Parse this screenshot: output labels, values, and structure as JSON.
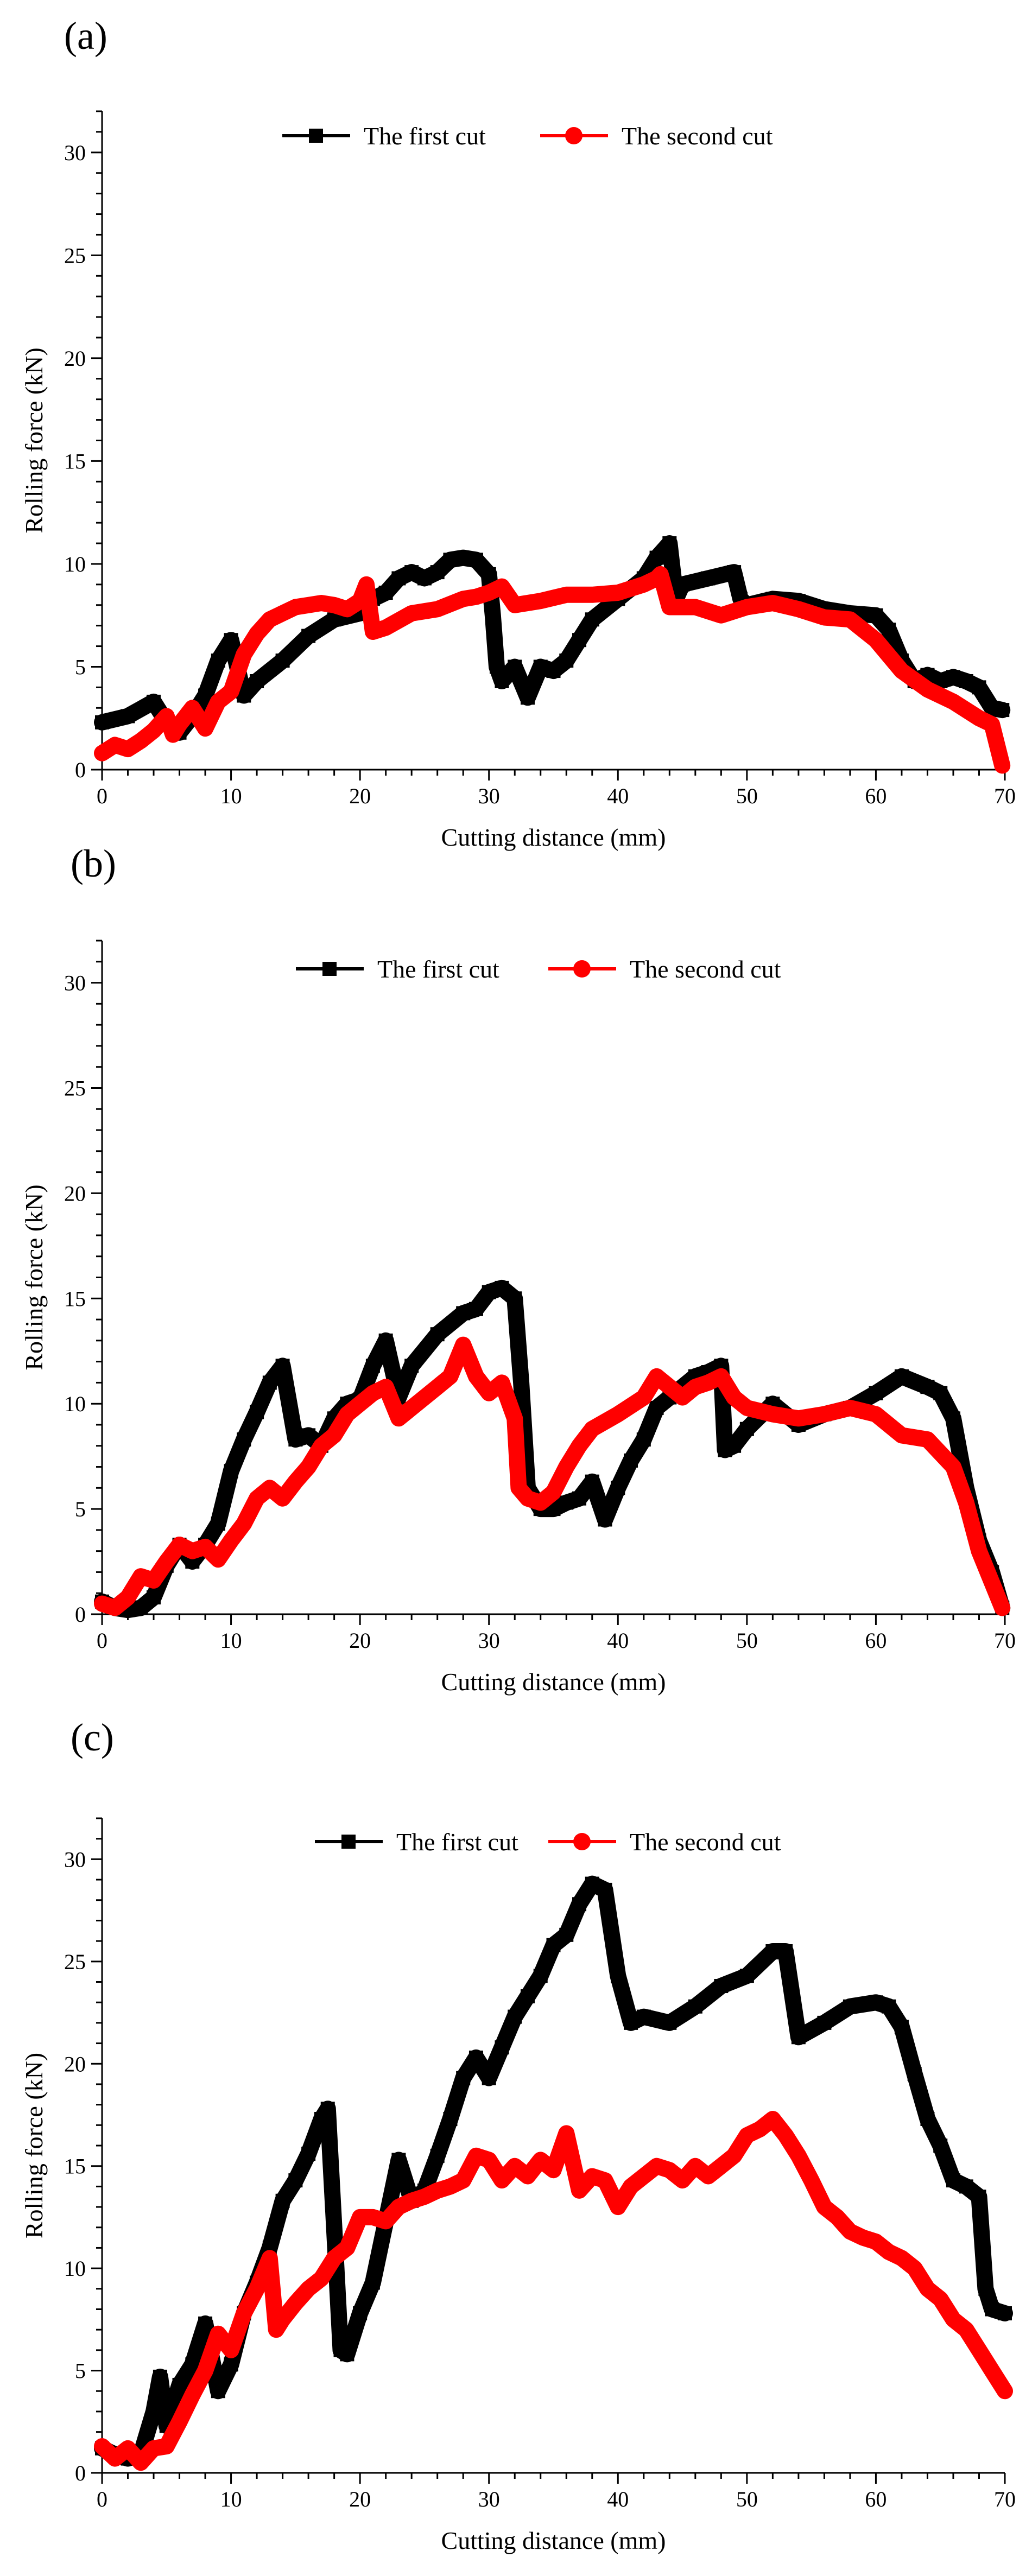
{
  "figure": {
    "panels": [
      {
        "label": "(a)"
      },
      {
        "label": "(b)"
      },
      {
        "label": "(c)"
      }
    ]
  },
  "chart_data": [
    {
      "type": "line",
      "panel": "(a)",
      "title": "",
      "xlabel": "Cutting distance (mm)",
      "ylabel": "Rolling force (kN)",
      "xlim": [
        0,
        70
      ],
      "ylim": [
        0,
        32
      ],
      "xticks": [
        "0",
        "10",
        "20",
        "30",
        "40",
        "50",
        "60",
        "70"
      ],
      "yticks": [
        "0",
        "5",
        "10",
        "15",
        "20",
        "25",
        "30"
      ],
      "legend_position": "top-center",
      "series": [
        {
          "name": "The first cut",
          "color": "#000000",
          "marker": "square",
          "x": [
            0,
            2,
            4,
            5,
            6,
            7,
            8,
            9,
            10,
            11,
            12,
            14,
            16,
            18,
            20,
            21,
            22,
            23,
            24,
            25,
            26,
            27,
            28,
            29,
            30,
            30.3,
            30.6,
            31,
            32,
            33,
            34,
            35,
            36,
            37,
            38,
            40,
            42,
            43,
            44,
            44.5,
            45,
            47,
            49,
            49.5,
            50,
            52,
            54,
            56,
            58,
            60,
            61,
            62,
            63,
            64,
            65,
            66,
            67,
            68,
            69,
            69.8
          ],
          "y": [
            2.3,
            2.6,
            3.3,
            2.3,
            1.8,
            2.6,
            3.6,
            5.3,
            6.3,
            3.6,
            4.3,
            5.3,
            6.5,
            7.3,
            7.6,
            8.3,
            8.6,
            9.3,
            9.6,
            9.3,
            9.6,
            10.2,
            10.3,
            10.2,
            9.5,
            7.5,
            5.0,
            4.3,
            5.0,
            3.5,
            5.0,
            4.8,
            5.3,
            6.3,
            7.3,
            8.3,
            9.3,
            10.3,
            11.0,
            8.3,
            9.0,
            9.3,
            9.6,
            8.3,
            8.0,
            8.3,
            8.2,
            7.8,
            7.6,
            7.5,
            6.8,
            5.3,
            4.3,
            4.6,
            4.3,
            4.5,
            4.3,
            4.0,
            3.0,
            2.9
          ]
        },
        {
          "name": "The second cut",
          "color": "#ff0000",
          "marker": "circle",
          "x": [
            0,
            1,
            2,
            3,
            4,
            5,
            5.5,
            6,
            7,
            8,
            9,
            10,
            11,
            12,
            13,
            14,
            15,
            16,
            17,
            18,
            19,
            20,
            20.5,
            21,
            22,
            24,
            26,
            28,
            29,
            30,
            31,
            32,
            34,
            36,
            38,
            40,
            41,
            42,
            43,
            43.3,
            44,
            46,
            48,
            50,
            52,
            54,
            56,
            58,
            60,
            62,
            64,
            66,
            68,
            69,
            69.8
          ],
          "y": [
            0.8,
            1.2,
            1.0,
            1.4,
            1.9,
            2.6,
            1.7,
            2.2,
            3.0,
            2.0,
            3.3,
            3.8,
            5.6,
            6.6,
            7.3,
            7.6,
            7.9,
            8.0,
            8.1,
            8.0,
            7.8,
            8.2,
            9.0,
            6.7,
            6.9,
            7.6,
            7.8,
            8.3,
            8.4,
            8.6,
            8.9,
            8.0,
            8.2,
            8.5,
            8.5,
            8.6,
            8.8,
            9.0,
            9.3,
            9.5,
            7.9,
            7.9,
            7.5,
            7.9,
            8.1,
            7.8,
            7.4,
            7.3,
            6.3,
            4.8,
            3.9,
            3.3,
            2.5,
            2.2,
            0.2
          ]
        }
      ]
    },
    {
      "type": "line",
      "panel": "(b)",
      "title": "",
      "xlabel": "Cutting distance (mm)",
      "ylabel": "Rolling force (kN)",
      "xlim": [
        0,
        70
      ],
      "ylim": [
        0,
        32
      ],
      "xticks": [
        "0",
        "10",
        "20",
        "30",
        "40",
        "50",
        "60",
        "70"
      ],
      "yticks": [
        "0",
        "5",
        "10",
        "15",
        "20",
        "25",
        "30"
      ],
      "legend_position": "top-center",
      "series": [
        {
          "name": "The first cut",
          "color": "#000000",
          "marker": "square",
          "x": [
            0,
            1,
            2,
            3,
            4,
            5,
            6,
            7,
            8,
            9,
            10,
            11,
            12,
            13,
            14,
            15,
            16,
            17,
            18,
            19,
            20,
            21,
            22,
            23,
            24,
            26,
            28,
            29,
            30,
            31,
            32,
            32.5,
            33,
            34,
            35,
            36,
            37,
            38,
            39,
            40,
            41,
            42,
            43,
            44,
            46,
            47,
            48,
            48.3,
            49,
            50,
            52,
            54,
            56,
            58,
            60,
            62,
            64,
            65,
            66,
            67,
            68,
            69,
            69.8
          ],
          "y": [
            0.6,
            0.3,
            0.2,
            0.3,
            0.8,
            2.3,
            3.3,
            2.5,
            3.3,
            4.3,
            6.8,
            8.3,
            9.6,
            11.0,
            11.8,
            8.3,
            8.5,
            8.0,
            9.3,
            10.0,
            10.2,
            11.8,
            13.0,
            10.3,
            11.8,
            13.3,
            14.3,
            14.5,
            15.3,
            15.5,
            15.0,
            11.0,
            6.0,
            5.0,
            5.0,
            5.3,
            5.5,
            6.3,
            4.5,
            6.0,
            7.3,
            8.3,
            9.8,
            10.3,
            11.3,
            11.5,
            11.8,
            7.8,
            8.0,
            8.8,
            10.0,
            9.0,
            9.5,
            9.8,
            10.5,
            11.3,
            10.8,
            10.5,
            9.3,
            6.0,
            3.5,
            2.0,
            0.3
          ]
        },
        {
          "name": "The second cut",
          "color": "#ff0000",
          "marker": "circle",
          "x": [
            0,
            1,
            2,
            3,
            4,
            5,
            6,
            7,
            8,
            9,
            10,
            11,
            12,
            13,
            14,
            15,
            16,
            17,
            18,
            19,
            20,
            21,
            22,
            23,
            24,
            26,
            27,
            28,
            29,
            30,
            31,
            32,
            32.3,
            33,
            34,
            35,
            36,
            37,
            38,
            40,
            42,
            43,
            44,
            45,
            46,
            47,
            48,
            49,
            50,
            52,
            54,
            56,
            58,
            60,
            62,
            64,
            66,
            67,
            68,
            69,
            69.8
          ],
          "y": [
            0.5,
            0.3,
            0.8,
            1.8,
            1.6,
            2.5,
            3.3,
            3.0,
            3.2,
            2.6,
            3.5,
            4.3,
            5.5,
            6.0,
            5.5,
            6.3,
            7.0,
            8.0,
            8.5,
            9.5,
            10.0,
            10.5,
            10.8,
            9.3,
            9.8,
            10.8,
            11.3,
            12.8,
            11.3,
            10.5,
            11.0,
            9.3,
            6.0,
            5.5,
            5.3,
            5.8,
            7.0,
            8.0,
            8.8,
            9.5,
            10.3,
            11.3,
            10.8,
            10.3,
            10.8,
            11.0,
            11.3,
            10.3,
            9.8,
            9.5,
            9.3,
            9.5,
            9.8,
            9.5,
            8.5,
            8.3,
            7.0,
            5.3,
            3.0,
            1.5,
            0.3
          ]
        }
      ]
    },
    {
      "type": "line",
      "panel": "(c)",
      "title": "",
      "xlabel": "Cutting distance (mm)",
      "ylabel": "Rolling force (kN)",
      "xlim": [
        0,
        70
      ],
      "ylim": [
        0,
        32
      ],
      "xticks": [
        "0",
        "10",
        "20",
        "30",
        "40",
        "50",
        "60",
        "70"
      ],
      "yticks": [
        "0",
        "5",
        "10",
        "15",
        "20",
        "25",
        "30"
      ],
      "legend_position": "top-center",
      "series": [
        {
          "name": "The first cut",
          "color": "#000000",
          "marker": "square",
          "x": [
            0,
            1,
            2,
            3,
            4,
            4.5,
            5,
            6,
            7,
            8,
            9,
            10,
            11,
            12,
            13,
            14,
            15,
            16,
            17,
            17.5,
            18,
            18.5,
            19,
            20,
            21,
            22,
            23,
            24,
            25,
            26,
            27,
            28,
            29,
            30,
            31,
            32,
            33,
            34,
            35,
            36,
            37,
            38,
            39,
            40,
            41,
            42,
            44,
            46,
            48,
            50,
            52,
            53,
            54,
            56,
            58,
            60,
            61,
            62,
            63,
            64,
            65,
            66,
            67,
            68,
            68.5,
            69,
            70
          ],
          "y": [
            1.2,
            0.9,
            0.7,
            0.9,
            3.0,
            4.7,
            2.3,
            4.3,
            5.3,
            7.3,
            4.0,
            5.3,
            7.8,
            9.3,
            11.0,
            13.3,
            14.3,
            15.6,
            17.3,
            17.8,
            12.0,
            6.0,
            5.8,
            7.8,
            9.3,
            12.3,
            15.3,
            13.3,
            13.8,
            15.5,
            17.3,
            19.3,
            20.3,
            19.3,
            20.8,
            22.3,
            23.3,
            24.3,
            25.8,
            26.3,
            27.8,
            28.8,
            28.5,
            24.3,
            22.0,
            22.3,
            22.0,
            22.8,
            23.8,
            24.3,
            25.5,
            25.5,
            21.3,
            22.0,
            22.8,
            23.0,
            22.8,
            21.8,
            19.5,
            17.3,
            16.0,
            14.3,
            14.0,
            13.5,
            9.0,
            8.0,
            7.8
          ]
        },
        {
          "name": "The second cut",
          "color": "#ff0000",
          "marker": "circle",
          "x": [
            0,
            1,
            2,
            3,
            4,
            5,
            6,
            7,
            8,
            9,
            10,
            11,
            12,
            13,
            13.5,
            14,
            15,
            16,
            17,
            18,
            19,
            20,
            21,
            22,
            23,
            24,
            25,
            26,
            27,
            28,
            29,
            30,
            31,
            32,
            33,
            34,
            35,
            36,
            37,
            38,
            39,
            40,
            41,
            42,
            43,
            44,
            45,
            46,
            47,
            48,
            49,
            50,
            51,
            52,
            53,
            54,
            55,
            56,
            57,
            58,
            59,
            60,
            61,
            62,
            63,
            64,
            65,
            66,
            67,
            68,
            69,
            70
          ],
          "y": [
            1.3,
            0.7,
            1.2,
            0.5,
            1.2,
            1.3,
            2.5,
            3.8,
            5.0,
            6.8,
            6.0,
            7.8,
            9.0,
            10.5,
            7.0,
            7.5,
            8.3,
            9.0,
            9.5,
            10.5,
            11.0,
            12.5,
            12.5,
            12.3,
            13.0,
            13.3,
            13.5,
            13.8,
            14.0,
            14.3,
            15.5,
            15.3,
            14.3,
            15.0,
            14.5,
            15.3,
            14.8,
            16.6,
            13.8,
            14.5,
            14.3,
            13.0,
            14.0,
            14.5,
            15.0,
            14.8,
            14.3,
            15.0,
            14.5,
            15.0,
            15.5,
            16.5,
            16.8,
            17.3,
            16.5,
            15.5,
            14.3,
            13.0,
            12.5,
            11.8,
            11.5,
            11.3,
            10.8,
            10.5,
            10.0,
            9.0,
            8.5,
            7.5,
            7.0,
            6.0,
            5.0,
            4.0
          ]
        }
      ]
    }
  ]
}
